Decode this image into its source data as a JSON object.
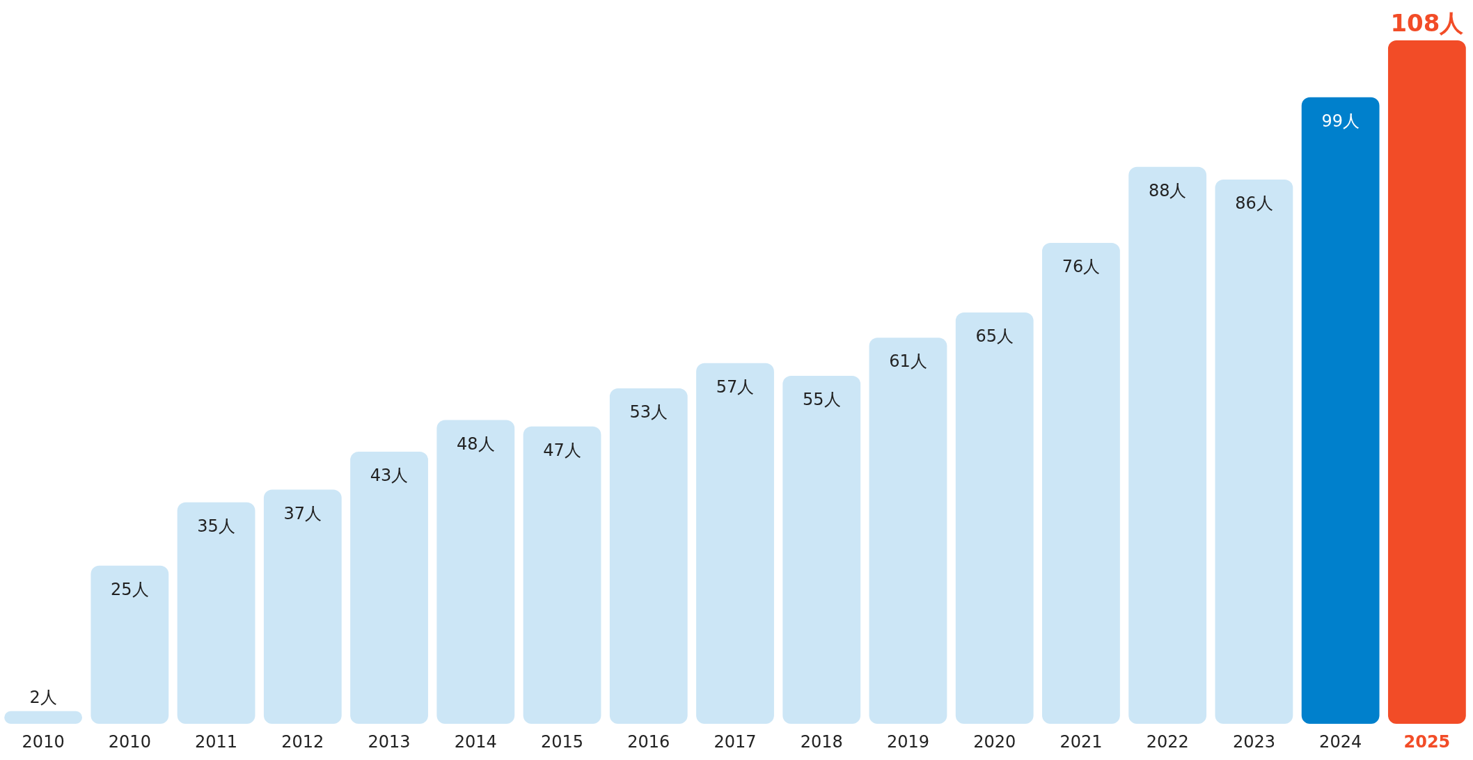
{
  "chart_data": {
    "type": "bar",
    "categories": [
      "2010",
      "2010",
      "2011",
      "2012",
      "2013",
      "2014",
      "2015",
      "2016",
      "2017",
      "2018",
      "2019",
      "2020",
      "2021",
      "2022",
      "2023",
      "2024",
      "2025"
    ],
    "values": [
      2,
      25,
      35,
      37,
      43,
      48,
      47,
      53,
      57,
      55,
      61,
      65,
      76,
      88,
      86,
      99,
      108
    ],
    "colors": [
      "#cce6f6",
      "#cce6f6",
      "#cce6f6",
      "#cce6f6",
      "#cce6f6",
      "#cce6f6",
      "#cce6f6",
      "#cce6f6",
      "#cce6f6",
      "#cce6f6",
      "#cce6f6",
      "#cce6f6",
      "#cce6f6",
      "#cce6f6",
      "#cce6f6",
      "#0080cc",
      "#f24c27"
    ],
    "value_labels": [
      "2人",
      "25人",
      "35人",
      "37人",
      "43人",
      "48人",
      "47人",
      "53人",
      "57人",
      "55人",
      "61人",
      "65人",
      "76人",
      "88人",
      "86人",
      "99人",
      "108人"
    ]
  }
}
